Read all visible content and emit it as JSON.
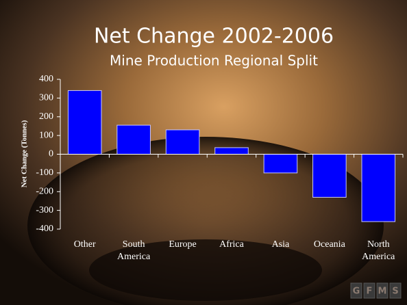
{
  "chart_data": {
    "type": "bar",
    "title": "Net Change 2002-2006",
    "subtitle": "Mine Production Regional Split",
    "y_label": "Net Change (Tonnes)",
    "categories": [
      "Other",
      "South America",
      "Europe",
      "Africa",
      "Asia",
      "Oceania",
      "North America"
    ],
    "values": [
      340,
      155,
      130,
      35,
      -100,
      -230,
      -360
    ],
    "color": "#0000ff",
    "ylim": [
      -400,
      400
    ],
    "yticks": [
      -400,
      -300,
      -200,
      -100,
      0,
      100,
      200,
      300,
      400
    ],
    "grid": false
  },
  "logo": [
    "G",
    "F",
    "M",
    "S"
  ]
}
